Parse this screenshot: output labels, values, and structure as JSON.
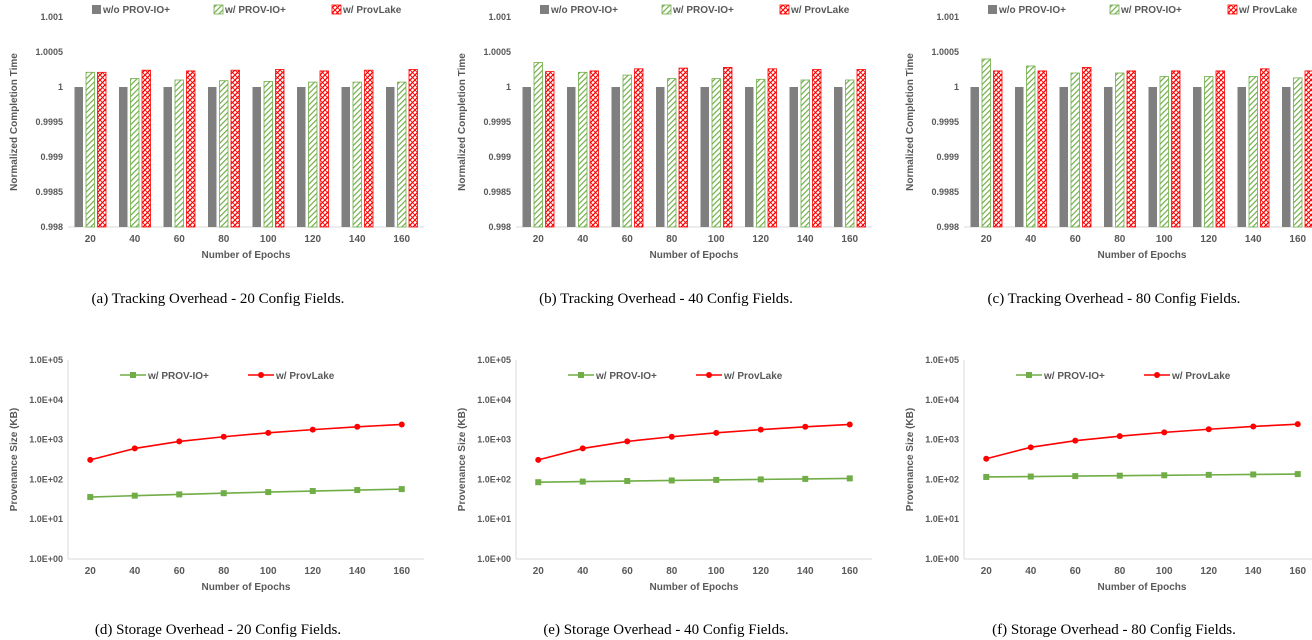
{
  "colors": {
    "baseline": "#7f7f7f",
    "provio": "#70ad47",
    "provlake": "#ff0000",
    "axis": "#d9d9d9",
    "text": "#595959"
  },
  "chart_data": [
    {
      "type": "bar",
      "caption": "(a) Tracking Overhead - 20 Config Fields.",
      "xlabel": "Number of Epochs",
      "ylabel": "Normalized Completion Time",
      "categories": [
        "20",
        "40",
        "60",
        "80",
        "100",
        "120",
        "140",
        "160"
      ],
      "ylim": [
        0.998,
        1.001
      ],
      "yticks": [
        "1.001",
        "1.0005",
        "1",
        "0.9995",
        "0.999",
        "0.9985",
        "0.998"
      ],
      "legend_position": "top",
      "series": [
        {
          "name": "w/o PROV-IO+",
          "values": [
            1,
            1,
            1,
            1,
            1,
            1,
            1,
            1
          ]
        },
        {
          "name": "w/ PROV-IO+",
          "values": [
            1.00021,
            1.00012,
            1.0001,
            1.00009,
            1.00008,
            1.00007,
            1.00007,
            1.00007
          ]
        },
        {
          "name": "w/ ProvLake",
          "values": [
            1.00021,
            1.00024,
            1.00023,
            1.00024,
            1.00025,
            1.00023,
            1.00024,
            1.00025
          ]
        }
      ]
    },
    {
      "type": "bar",
      "caption": "(b) Tracking Overhead - 40 Config Fields.",
      "xlabel": "Number of Epochs",
      "ylabel": "Normalized Completion Time",
      "categories": [
        "20",
        "40",
        "60",
        "80",
        "100",
        "120",
        "140",
        "160"
      ],
      "ylim": [
        0.998,
        1.001
      ],
      "yticks": [
        "1.001",
        "1.0005",
        "1",
        "0.9995",
        "0.999",
        "0.9985",
        "0.998"
      ],
      "legend_position": "top",
      "series": [
        {
          "name": "w/o PROV-IO+",
          "values": [
            1,
            1,
            1,
            1,
            1,
            1,
            1,
            1
          ]
        },
        {
          "name": "w/ PROV-IO+",
          "values": [
            1.00035,
            1.00021,
            1.00017,
            1.00012,
            1.00012,
            1.00011,
            1.0001,
            1.0001
          ]
        },
        {
          "name": "w/ ProvLake",
          "values": [
            1.00022,
            1.00023,
            1.00026,
            1.00027,
            1.00028,
            1.00026,
            1.00025,
            1.00025
          ]
        }
      ]
    },
    {
      "type": "bar",
      "caption": "(c) Tracking Overhead - 80 Config Fields.",
      "xlabel": "Number of Epochs",
      "ylabel": "Normalized Completion Time",
      "categories": [
        "20",
        "40",
        "60",
        "80",
        "100",
        "120",
        "140",
        "160"
      ],
      "ylim": [
        0.998,
        1.001
      ],
      "yticks": [
        "1.001",
        "1.0005",
        "1",
        "0.9995",
        "0.999",
        "0.9985",
        "0.998"
      ],
      "legend_position": "top",
      "series": [
        {
          "name": "w/o PROV-IO+",
          "values": [
            1,
            1,
            1,
            1,
            1,
            1,
            1,
            1
          ]
        },
        {
          "name": "w/ PROV-IO+",
          "values": [
            1.0004,
            1.0003,
            1.0002,
            1.0002,
            1.00015,
            1.00015,
            1.00015,
            1.00013
          ]
        },
        {
          "name": "w/ ProvLake",
          "values": [
            1.00023,
            1.00023,
            1.00028,
            1.00023,
            1.00023,
            1.00023,
            1.00026,
            1.00023
          ]
        }
      ]
    },
    {
      "type": "line",
      "caption": "(d) Storage Overhead - 20 Config Fields.",
      "xlabel": "Number of Epochs",
      "ylabel": "Provenance Size (KB)",
      "y_scale": "log",
      "x": [
        "20",
        "40",
        "60",
        "80",
        "100",
        "120",
        "140",
        "160"
      ],
      "ylim": [
        1,
        100000
      ],
      "yticks": [
        "1.0E+05",
        "1.0E+04",
        "1.0E+03",
        "1.0E+02",
        "1.0E+01",
        "1.0E+00"
      ],
      "legend_position": "top",
      "series": [
        {
          "name": "w/ PROV-IO+",
          "values": [
            36,
            39,
            42,
            45,
            48,
            51,
            54,
            57
          ]
        },
        {
          "name": "w/ ProvLake",
          "values": [
            310,
            600,
            900,
            1180,
            1480,
            1780,
            2100,
            2400
          ]
        }
      ]
    },
    {
      "type": "line",
      "caption": "(e) Storage Overhead - 40 Config Fields.",
      "xlabel": "Number of Epochs",
      "ylabel": "Provenance Size (KB)",
      "y_scale": "log",
      "x": [
        "20",
        "40",
        "60",
        "80",
        "100",
        "120",
        "140",
        "160"
      ],
      "ylim": [
        1,
        100000
      ],
      "yticks": [
        "1.0E+05",
        "1.0E+04",
        "1.0E+03",
        "1.0E+02",
        "1.0E+01",
        "1.0E+00"
      ],
      "legend_position": "top",
      "series": [
        {
          "name": "w/ PROV-IO+",
          "values": [
            85,
            88,
            91,
            94,
            97,
            100,
            103,
            106
          ]
        },
        {
          "name": "w/ ProvLake",
          "values": [
            310,
            600,
            900,
            1180,
            1480,
            1780,
            2100,
            2400
          ]
        }
      ]
    },
    {
      "type": "line",
      "caption": "(f) Storage Overhead - 80 Config Fields.",
      "xlabel": "Number of Epochs",
      "ylabel": "Provenance Size (KB)",
      "y_scale": "log",
      "x": [
        "20",
        "40",
        "60",
        "80",
        "100",
        "120",
        "140",
        "160"
      ],
      "ylim": [
        1,
        100000
      ],
      "yticks": [
        "1.0E+05",
        "1.0E+04",
        "1.0E+03",
        "1.0E+02",
        "1.0E+01",
        "1.0E+00"
      ],
      "legend_position": "top",
      "series": [
        {
          "name": "w/ PROV-IO+",
          "values": [
            115,
            118,
            121,
            124,
            127,
            130,
            133,
            136
          ]
        },
        {
          "name": "w/ ProvLake",
          "values": [
            330,
            640,
            940,
            1220,
            1520,
            1820,
            2140,
            2440
          ]
        }
      ]
    }
  ]
}
